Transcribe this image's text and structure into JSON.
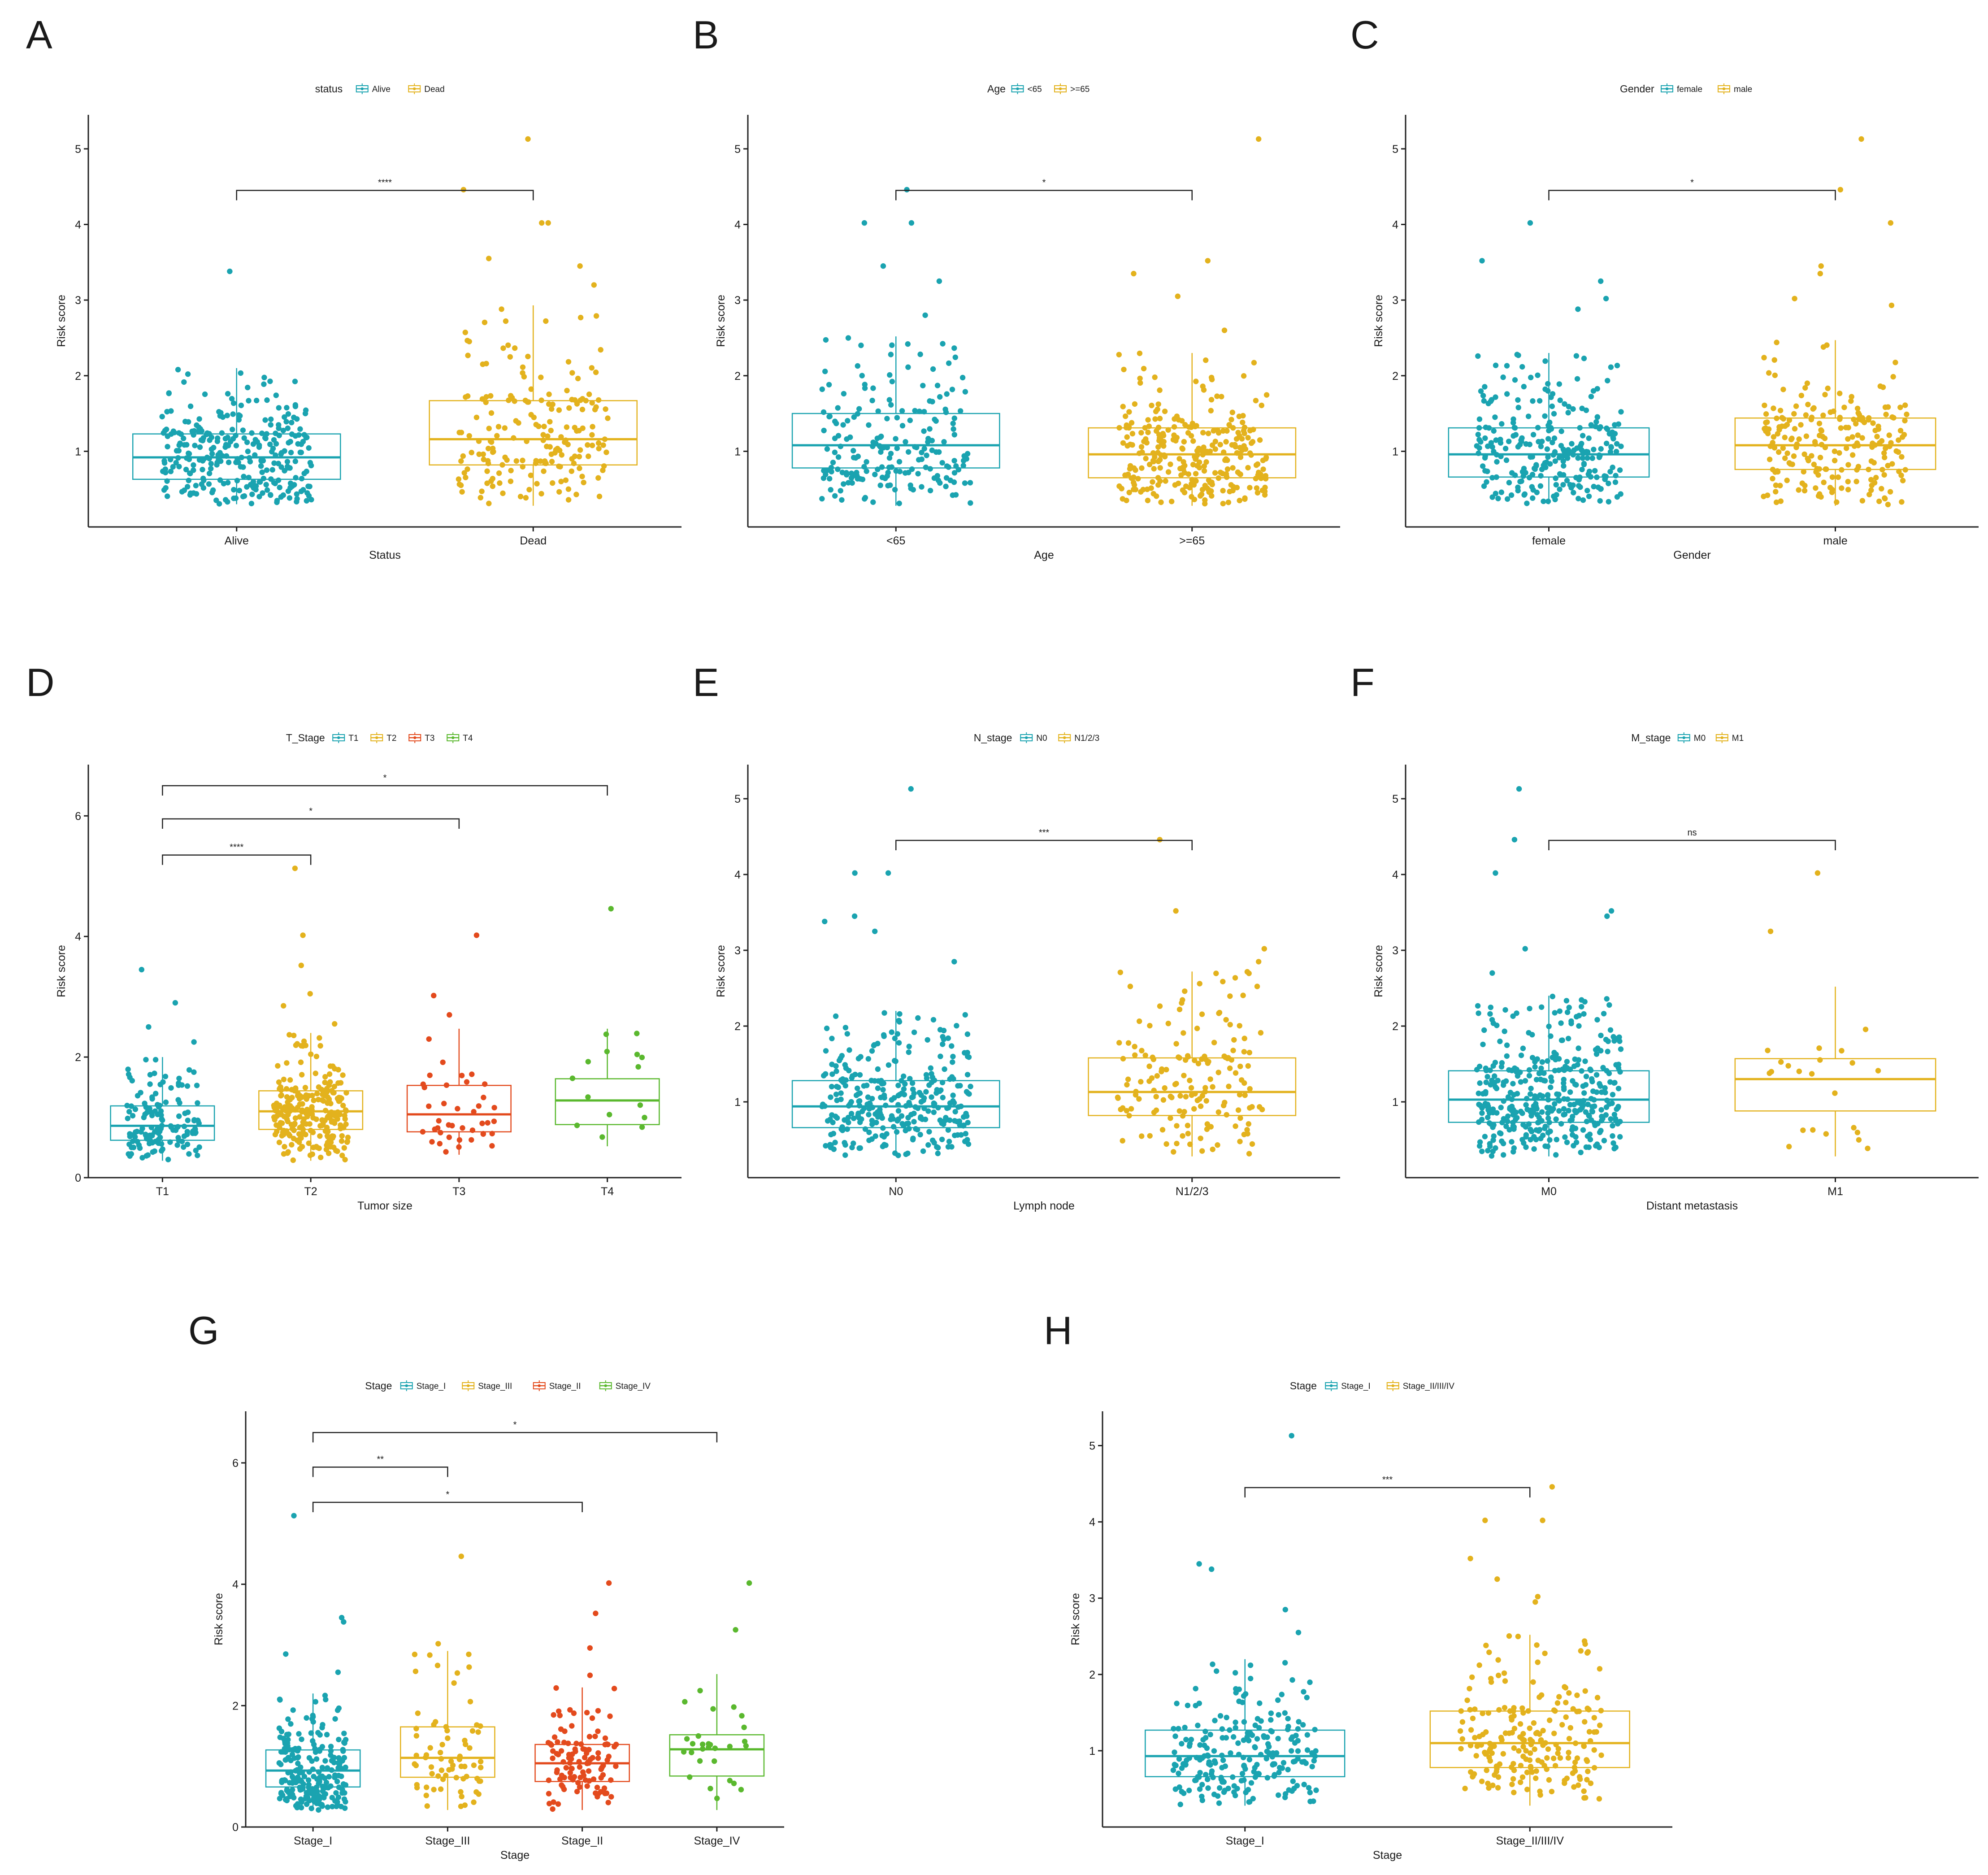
{
  "chart_data": [
    {
      "type": "box",
      "panel": "A",
      "title": "",
      "legend_title": "status",
      "legend_entries": [
        "Alive",
        "Dead"
      ],
      "xlabel": "Status",
      "ylabel": "Risk score",
      "categories": [
        "Alive",
        "Dead"
      ],
      "colors": [
        "#1aa3b0",
        "#e3b21d"
      ],
      "ylim": [
        0.0,
        5.45
      ],
      "yticks": [
        1,
        2,
        3,
        4,
        5
      ],
      "boxes": [
        {
          "q1": 0.63,
          "median": 0.92,
          "q3": 1.23,
          "lo": 0.3,
          "hi": 2.1,
          "n": 300
        },
        {
          "q1": 0.82,
          "median": 1.16,
          "q3": 1.67,
          "lo": 0.28,
          "hi": 2.93,
          "n": 190
        }
      ],
      "outliers": [
        [
          3.38
        ],
        [
          3.2,
          3.45,
          3.55,
          4.02,
          4.02,
          4.46,
          5.13
        ]
      ],
      "comparisons": [
        {
          "from": 0,
          "to": 1,
          "label": "****",
          "y": 4.45
        }
      ]
    },
    {
      "type": "box",
      "panel": "B",
      "legend_title": "Age",
      "legend_entries": [
        "<65",
        ">=65"
      ],
      "xlabel": "Age",
      "ylabel": "Risk score",
      "categories": [
        "<65",
        ">=65"
      ],
      "colors": [
        "#1aa3b0",
        "#e3b21d"
      ],
      "ylim": [
        0.0,
        5.45
      ],
      "yticks": [
        1,
        2,
        3,
        4,
        5
      ],
      "boxes": [
        {
          "q1": 0.78,
          "median": 1.08,
          "q3": 1.5,
          "lo": 0.28,
          "hi": 2.52,
          "n": 200
        },
        {
          "q1": 0.65,
          "median": 0.96,
          "q3": 1.31,
          "lo": 0.28,
          "hi": 2.3,
          "n": 290
        }
      ],
      "outliers": [
        [
          2.8,
          3.25,
          3.45,
          4.02,
          4.02,
          4.46
        ],
        [
          2.6,
          3.05,
          3.35,
          3.52,
          5.13
        ]
      ],
      "comparisons": [
        {
          "from": 0,
          "to": 1,
          "label": "*",
          "y": 4.45
        }
      ]
    },
    {
      "type": "box",
      "panel": "C",
      "legend_title": "Gender",
      "legend_entries": [
        "female",
        "male"
      ],
      "xlabel": "Gender",
      "ylabel": "Risk score",
      "categories": [
        "female",
        "male"
      ],
      "colors": [
        "#1aa3b0",
        "#e3b21d"
      ],
      "ylim": [
        0.0,
        5.45
      ],
      "yticks": [
        1,
        2,
        3,
        4,
        5
      ],
      "boxes": [
        {
          "q1": 0.66,
          "median": 0.96,
          "q3": 1.31,
          "lo": 0.3,
          "hi": 2.3,
          "n": 270
        },
        {
          "q1": 0.76,
          "median": 1.08,
          "q3": 1.44,
          "lo": 0.28,
          "hi": 2.47,
          "n": 220
        }
      ],
      "outliers": [
        [
          2.88,
          3.02,
          3.25,
          3.52,
          4.02
        ],
        [
          2.93,
          3.02,
          3.35,
          3.45,
          4.02,
          4.46,
          5.13
        ]
      ],
      "comparisons": [
        {
          "from": 0,
          "to": 1,
          "label": "*",
          "y": 4.45
        }
      ]
    },
    {
      "type": "box",
      "panel": "D",
      "legend_title": "T_Stage",
      "legend_entries": [
        "T1",
        "T2",
        "T3",
        "T4"
      ],
      "xlabel": "Tumor size",
      "ylabel": "Risk score",
      "categories": [
        "T1",
        "T2",
        "T3",
        "T4"
      ],
      "colors": [
        "#1aa3b0",
        "#e3b21d",
        "#e34a1d",
        "#5ab82e"
      ],
      "ylim": [
        0.0,
        6.85
      ],
      "yticks": [
        0,
        2,
        4,
        6
      ],
      "boxes": [
        {
          "q1": 0.62,
          "median": 0.86,
          "q3": 1.19,
          "lo": 0.28,
          "hi": 2.0,
          "n": 140
        },
        {
          "q1": 0.8,
          "median": 1.1,
          "q3": 1.44,
          "lo": 0.28,
          "hi": 2.4,
          "n": 250
        },
        {
          "q1": 0.76,
          "median": 1.05,
          "q3": 1.53,
          "lo": 0.38,
          "hi": 2.47,
          "n": 40
        },
        {
          "q1": 0.88,
          "median": 1.28,
          "q3": 1.64,
          "lo": 0.52,
          "hi": 2.47,
          "n": 15
        }
      ],
      "outliers": [
        [
          2.25,
          2.5,
          2.9,
          3.45
        ],
        [
          2.55,
          2.85,
          3.05,
          3.52,
          4.02,
          5.13
        ],
        [
          2.7,
          3.02,
          4.02
        ],
        [
          4.46
        ]
      ],
      "comparisons": [
        {
          "from": 0,
          "to": 1,
          "label": "****",
          "y": 5.35
        },
        {
          "from": 0,
          "to": 2,
          "label": "*",
          "y": 5.95
        },
        {
          "from": 0,
          "to": 3,
          "label": "*",
          "y": 6.5
        }
      ]
    },
    {
      "type": "box",
      "panel": "E",
      "legend_title": "N_stage",
      "legend_entries": [
        "N0",
        "N1/2/3"
      ],
      "xlabel": "Lymph node",
      "ylabel": "Risk score",
      "categories": [
        "N0",
        "N1/2/3"
      ],
      "colors": [
        "#1aa3b0",
        "#e3b21d"
      ],
      "ylim": [
        0.0,
        5.45
      ],
      "yticks": [
        1,
        2,
        3,
        4,
        5
      ],
      "boxes": [
        {
          "q1": 0.66,
          "median": 0.94,
          "q3": 1.28,
          "lo": 0.28,
          "hi": 2.2,
          "n": 320
        },
        {
          "q1": 0.82,
          "median": 1.13,
          "q3": 1.58,
          "lo": 0.28,
          "hi": 2.72,
          "n": 160
        }
      ],
      "outliers": [
        [
          2.85,
          3.25,
          3.38,
          3.45,
          4.02,
          4.02,
          5.13
        ],
        [
          2.85,
          3.02,
          3.52,
          4.46
        ]
      ],
      "comparisons": [
        {
          "from": 0,
          "to": 1,
          "label": "***",
          "y": 4.45
        }
      ]
    },
    {
      "type": "box",
      "panel": "F",
      "legend_title": "M_stage",
      "legend_entries": [
        "M0",
        "M1"
      ],
      "xlabel": "Distant metastasis",
      "ylabel": "Risk score",
      "categories": [
        "M0",
        "M1"
      ],
      "colors": [
        "#1aa3b0",
        "#e3b21d"
      ],
      "ylim": [
        0.0,
        5.45
      ],
      "yticks": [
        1,
        2,
        3,
        4,
        5
      ],
      "boxes": [
        {
          "q1": 0.73,
          "median": 1.03,
          "q3": 1.41,
          "lo": 0.28,
          "hi": 2.4,
          "n": 400
        },
        {
          "q1": 0.88,
          "median": 1.3,
          "q3": 1.57,
          "lo": 0.28,
          "hi": 2.52,
          "n": 22
        }
      ],
      "outliers": [
        [
          2.7,
          3.02,
          3.45,
          3.52,
          4.02,
          4.46,
          5.13
        ],
        [
          3.25,
          4.02
        ]
      ],
      "comparisons": [
        {
          "from": 0,
          "to": 1,
          "label": "ns",
          "y": 4.45
        }
      ]
    },
    {
      "type": "box",
      "panel": "G",
      "legend_title": "Stage",
      "legend_entries": [
        "Stage_I",
        "Stage_III",
        "Stage_II",
        "Stage_IV"
      ],
      "xlabel": "Stage",
      "ylabel": "Risk score",
      "categories": [
        "Stage_I",
        "Stage_III",
        "Stage_II",
        "Stage_IV"
      ],
      "colors": [
        "#1aa3b0",
        "#e3b21d",
        "#e34a1d",
        "#5ab82e"
      ],
      "ylim": [
        0.0,
        6.85
      ],
      "yticks": [
        0,
        2,
        4,
        6
      ],
      "boxes": [
        {
          "q1": 0.66,
          "median": 0.93,
          "q3": 1.27,
          "lo": 0.28,
          "hi": 2.2,
          "n": 230
        },
        {
          "q1": 0.82,
          "median": 1.14,
          "q3": 1.65,
          "lo": 0.28,
          "hi": 2.9,
          "n": 70
        },
        {
          "q1": 0.75,
          "median": 1.05,
          "q3": 1.36,
          "lo": 0.28,
          "hi": 2.3,
          "n": 110
        },
        {
          "q1": 0.84,
          "median": 1.28,
          "q3": 1.52,
          "lo": 0.28,
          "hi": 2.52,
          "n": 28
        }
      ],
      "outliers": [
        [
          2.55,
          2.85,
          3.38,
          3.45,
          5.13
        ],
        [
          3.02,
          4.46
        ],
        [
          2.5,
          2.95,
          3.52,
          4.02
        ],
        [
          3.25,
          4.02
        ]
      ],
      "comparisons": [
        {
          "from": 0,
          "to": 2,
          "label": "*",
          "y": 5.35
        },
        {
          "from": 0,
          "to": 1,
          "label": "**",
          "y": 5.93
        },
        {
          "from": 0,
          "to": 3,
          "label": "*",
          "y": 6.5
        }
      ]
    },
    {
      "type": "box",
      "panel": "H",
      "legend_title": "Stage",
      "legend_entries": [
        "Stage_I",
        "Stage_II/III/IV"
      ],
      "xlabel": "Stage",
      "ylabel": "Risk score",
      "categories": [
        "Stage_I",
        "Stage_II/III/IV"
      ],
      "colors": [
        "#1aa3b0",
        "#e3b21d"
      ],
      "ylim": [
        0.0,
        5.45
      ],
      "yticks": [
        1,
        2,
        3,
        4,
        5
      ],
      "boxes": [
        {
          "q1": 0.66,
          "median": 0.93,
          "q3": 1.27,
          "lo": 0.28,
          "hi": 2.2,
          "n": 230
        },
        {
          "q1": 0.78,
          "median": 1.1,
          "q3": 1.52,
          "lo": 0.28,
          "hi": 2.52,
          "n": 210
        }
      ],
      "outliers": [
        [
          2.55,
          2.85,
          3.38,
          3.45,
          5.13
        ],
        [
          2.95,
          3.02,
          3.25,
          3.52,
          4.02,
          4.02,
          4.46
        ]
      ],
      "comparisons": [
        {
          "from": 0,
          "to": 1,
          "label": "***",
          "y": 4.45
        }
      ]
    }
  ]
}
